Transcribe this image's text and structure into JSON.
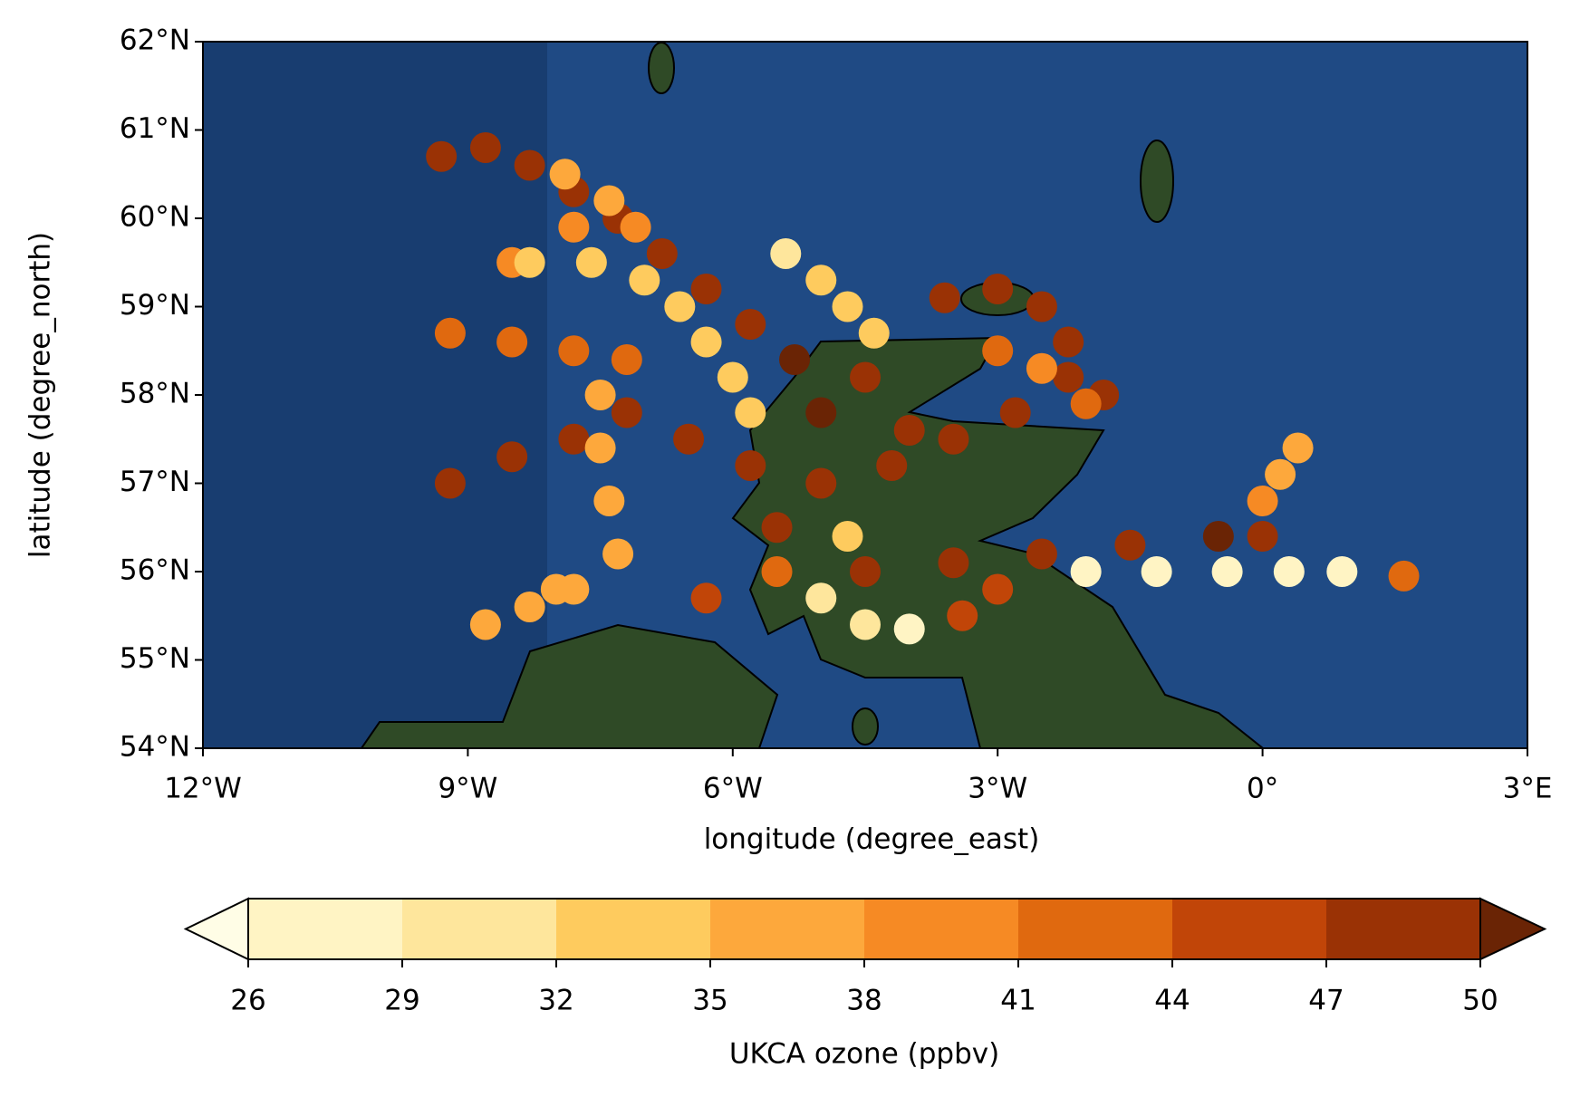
{
  "chart_data": {
    "type": "scatter",
    "xlabel": "longitude (degree_east)",
    "ylabel": "latitude (degree_north)",
    "xlim": [
      -12,
      3
    ],
    "ylim": [
      54,
      62
    ],
    "xticks": [
      {
        "value": -12,
        "label": "12°W"
      },
      {
        "value": -9,
        "label": "9°W"
      },
      {
        "value": -6,
        "label": "6°W"
      },
      {
        "value": -3,
        "label": "3°W"
      },
      {
        "value": 0,
        "label": "0°"
      },
      {
        "value": 3,
        "label": "3°E"
      }
    ],
    "yticks": [
      {
        "value": 54,
        "label": "54°N"
      },
      {
        "value": 55,
        "label": "55°N"
      },
      {
        "value": 56,
        "label": "56°N"
      },
      {
        "value": 57,
        "label": "57°N"
      },
      {
        "value": 58,
        "label": "58°N"
      },
      {
        "value": 59,
        "label": "59°N"
      },
      {
        "value": 60,
        "label": "60°N"
      },
      {
        "value": 61,
        "label": "61°N"
      },
      {
        "value": 62,
        "label": "62°N"
      }
    ],
    "x": [
      -9.3,
      -8.8,
      -8.3,
      -7.8,
      -7.3,
      -6.8,
      -6.3,
      -5.8,
      -5.3,
      -7.9,
      -7.4,
      -7.1,
      -7.8,
      -8.5,
      -8.3,
      -7.6,
      -7.0,
      -6.6,
      -6.3,
      -6.0,
      -5.8,
      -5.4,
      -5.0,
      -4.7,
      -4.4,
      -9.2,
      -8.5,
      -7.8,
      -7.2,
      -9.2,
      -8.5,
      -7.8,
      -7.2,
      -6.5,
      -5.8,
      -5.0,
      -4.2,
      -3.5,
      -2.8,
      -2.2,
      -1.8,
      -3.6,
      -3.0,
      -2.5,
      -2.2,
      -3.0,
      -2.5,
      -2.0,
      -7.5,
      -7.5,
      -7.4,
      -7.3,
      -7.8,
      -8.3,
      -8.8,
      -8.0,
      -4.5,
      -3.5,
      -2.5,
      -1.5,
      -0.5,
      0.0,
      -2.0,
      -1.2,
      -0.4,
      0.3,
      0.9,
      1.6,
      0.0,
      0.2,
      0.4,
      -5.0,
      -4.5,
      -4.0,
      -3.4,
      -3.0,
      -4.7,
      -5.0,
      -4.5,
      -4.0,
      -5.5,
      -6.3,
      -5.5
    ],
    "y": [
      60.7,
      60.8,
      60.6,
      60.3,
      60.0,
      59.6,
      59.2,
      58.8,
      58.4,
      60.5,
      60.2,
      59.9,
      59.9,
      59.5,
      59.5,
      59.5,
      59.3,
      59.0,
      58.6,
      58.2,
      57.8,
      59.6,
      59.3,
      59.0,
      58.7,
      58.7,
      58.6,
      58.5,
      58.4,
      57.0,
      57.3,
      57.5,
      57.8,
      57.5,
      57.2,
      57.0,
      57.2,
      57.5,
      57.8,
      58.2,
      58.0,
      59.1,
      59.2,
      59.0,
      58.6,
      58.5,
      58.3,
      57.9,
      58.0,
      57.4,
      56.8,
      56.2,
      55.8,
      55.6,
      55.4,
      55.8,
      56.0,
      56.1,
      56.2,
      56.3,
      56.4,
      56.4,
      56.0,
      56.0,
      56.0,
      56.0,
      56.0,
      55.95,
      56.8,
      57.1,
      57.4,
      55.7,
      55.4,
      55.35,
      55.5,
      55.8,
      56.4,
      57.8,
      58.2,
      57.6,
      56.5,
      55.7,
      56.0
    ],
    "c": [
      49,
      49,
      48,
      48,
      48,
      49,
      49,
      49,
      50,
      36,
      37,
      38,
      39,
      38,
      32,
      33,
      32,
      33,
      34,
      32,
      33,
      31,
      32,
      33,
      34,
      43,
      43,
      42,
      43,
      47,
      47,
      48,
      48,
      48,
      49,
      49,
      49,
      48,
      48,
      49,
      48,
      49,
      49,
      48,
      48,
      41,
      40,
      41,
      37,
      37,
      37,
      36,
      35,
      36,
      37,
      35,
      49,
      49,
      48,
      49,
      50,
      49,
      26,
      27,
      26,
      26,
      27,
      42,
      38,
      36,
      35,
      31,
      29,
      28,
      44,
      45,
      33,
      50,
      49,
      49,
      47,
      44,
      43
    ],
    "colorbar": {
      "label": "UKCA ozone (ppbv)",
      "ticks": [
        26,
        29,
        32,
        35,
        38,
        41,
        44,
        47,
        50
      ],
      "colors": [
        "#fff4c4",
        "#fee69c",
        "#fecb5e",
        "#fda83c",
        "#f68a24",
        "#e0690f",
        "#c14508",
        "#9a3205"
      ],
      "under_color": "#fffde6",
      "over_color": "#6a2405"
    }
  }
}
